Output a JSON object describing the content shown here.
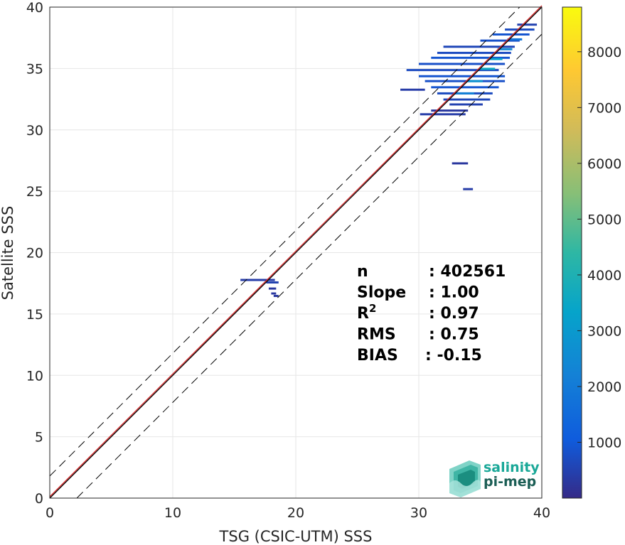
{
  "chart_data": {
    "type": "heatmap",
    "title": "",
    "xlabel": "TSG (CSIC-UTM) SSS",
    "ylabel": "Satellite SSS",
    "xlim": [
      0,
      40
    ],
    "ylim": [
      0,
      40
    ],
    "xticks": [
      "0",
      "10",
      "20",
      "30",
      "40"
    ],
    "yticks": [
      "0",
      "5",
      "10",
      "15",
      "20",
      "25",
      "30",
      "35",
      "40"
    ],
    "grid": true,
    "colorbar": {
      "colormap": "parula",
      "range": [
        0,
        8800
      ],
      "ticks": [
        "1000",
        "2000",
        "3000",
        "4000",
        "5000",
        "6000",
        "7000",
        "8000"
      ]
    },
    "reference_lines": [
      {
        "name": "1:1 line",
        "slope": 1,
        "intercept": 0,
        "color": "#000000",
        "style": "solid"
      },
      {
        "name": "regression",
        "slope": 1.0,
        "intercept": 0,
        "color": "#d62728",
        "style": "solid"
      },
      {
        "name": "upper bound",
        "slope": 1,
        "intercept": 1.8,
        "color": "#000000",
        "style": "dashed"
      },
      {
        "name": "lower bound",
        "slope": 1,
        "intercept": -2.2,
        "color": "#000000",
        "style": "dashed"
      }
    ],
    "density_cells": [
      {
        "x": [
          15.5,
          18.3
        ],
        "y": 17.8,
        "count": 400
      },
      {
        "x": [
          17.6,
          18.6
        ],
        "y": 17.6,
        "count": 500
      },
      {
        "x": [
          17.8,
          18.4
        ],
        "y": 17.1,
        "count": 300
      },
      {
        "x": [
          18.0,
          18.4
        ],
        "y": 16.7,
        "count": 300
      },
      {
        "x": [
          18.2,
          18.6
        ],
        "y": 16.5,
        "count": 300
      },
      {
        "x": [
          32.7,
          34.0
        ],
        "y": 27.3,
        "count": 300
      },
      {
        "x": [
          33.6,
          34.4
        ],
        "y": 25.2,
        "count": 400
      },
      {
        "x": [
          30.1,
          33.8
        ],
        "y": 31.3,
        "count": 400
      },
      {
        "x": [
          31.0,
          34.0
        ],
        "y": 31.6,
        "count": 300
      },
      {
        "x": [
          32.5,
          35.2
        ],
        "y": 32.1,
        "count": 500
      },
      {
        "x": [
          32.0,
          35.8
        ],
        "y": 32.5,
        "count": 600
      },
      {
        "x": [
          31.5,
          36.0
        ],
        "y": 33.0,
        "count": 700
      },
      {
        "x": [
          28.5,
          30.5
        ],
        "y": 33.3,
        "count": 400
      },
      {
        "x": [
          31.0,
          36.5
        ],
        "y": 33.5,
        "count": 900
      },
      {
        "x": [
          30.5,
          37.0
        ],
        "y": 34.0,
        "count": 800
      },
      {
        "x": [
          30.0,
          37.0
        ],
        "y": 34.4,
        "count": 900
      },
      {
        "x": [
          29.0,
          36.5
        ],
        "y": 34.9,
        "count": 700
      },
      {
        "x": [
          30.0,
          37.0
        ],
        "y": 35.4,
        "count": 800
      },
      {
        "x": [
          31.0,
          37.4
        ],
        "y": 35.9,
        "count": 900
      },
      {
        "x": [
          31.5,
          37.5
        ],
        "y": 36.3,
        "count": 700
      },
      {
        "x": [
          32.0,
          37.8
        ],
        "y": 36.8,
        "count": 600
      },
      {
        "x": [
          35.0,
          38.2
        ],
        "y": 37.3,
        "count": 800
      },
      {
        "x": [
          36.0,
          39.0
        ],
        "y": 37.8,
        "count": 900
      },
      {
        "x": [
          37.0,
          39.4
        ],
        "y": 38.2,
        "count": 700
      },
      {
        "x": [
          38.0,
          39.6
        ],
        "y": 38.6,
        "count": 500
      },
      {
        "x": [
          33.0,
          34.5
        ],
        "y": 33.0,
        "count": 2200
      },
      {
        "x": [
          34.0,
          35.2
        ],
        "y": 34.0,
        "count": 2800
      },
      {
        "x": [
          35.0,
          36.2
        ],
        "y": 35.0,
        "count": 3600
      },
      {
        "x": [
          35.6,
          36.8
        ],
        "y": 35.8,
        "count": 3200
      },
      {
        "x": [
          36.4,
          37.6
        ],
        "y": 36.6,
        "count": 2400
      },
      {
        "x": [
          37.2,
          38.4
        ],
        "y": 37.4,
        "count": 1800
      }
    ]
  },
  "stats": [
    {
      "label": "n",
      "value": ": 402561"
    },
    {
      "label": "Slope",
      "value": ": 1.00"
    },
    {
      "label": "R",
      "sup": "2",
      "value": ": 0.97"
    },
    {
      "label": "RMS",
      "value": ": 0.75"
    },
    {
      "label": "BIAS",
      "value": ": -0.15"
    }
  ],
  "logo": {
    "line1": "salinity",
    "line2": "pi-mep"
  },
  "colors": {
    "regression": "#d62728",
    "logo_teal": "#1aa898",
    "logo_dark": "#1b5e55"
  }
}
